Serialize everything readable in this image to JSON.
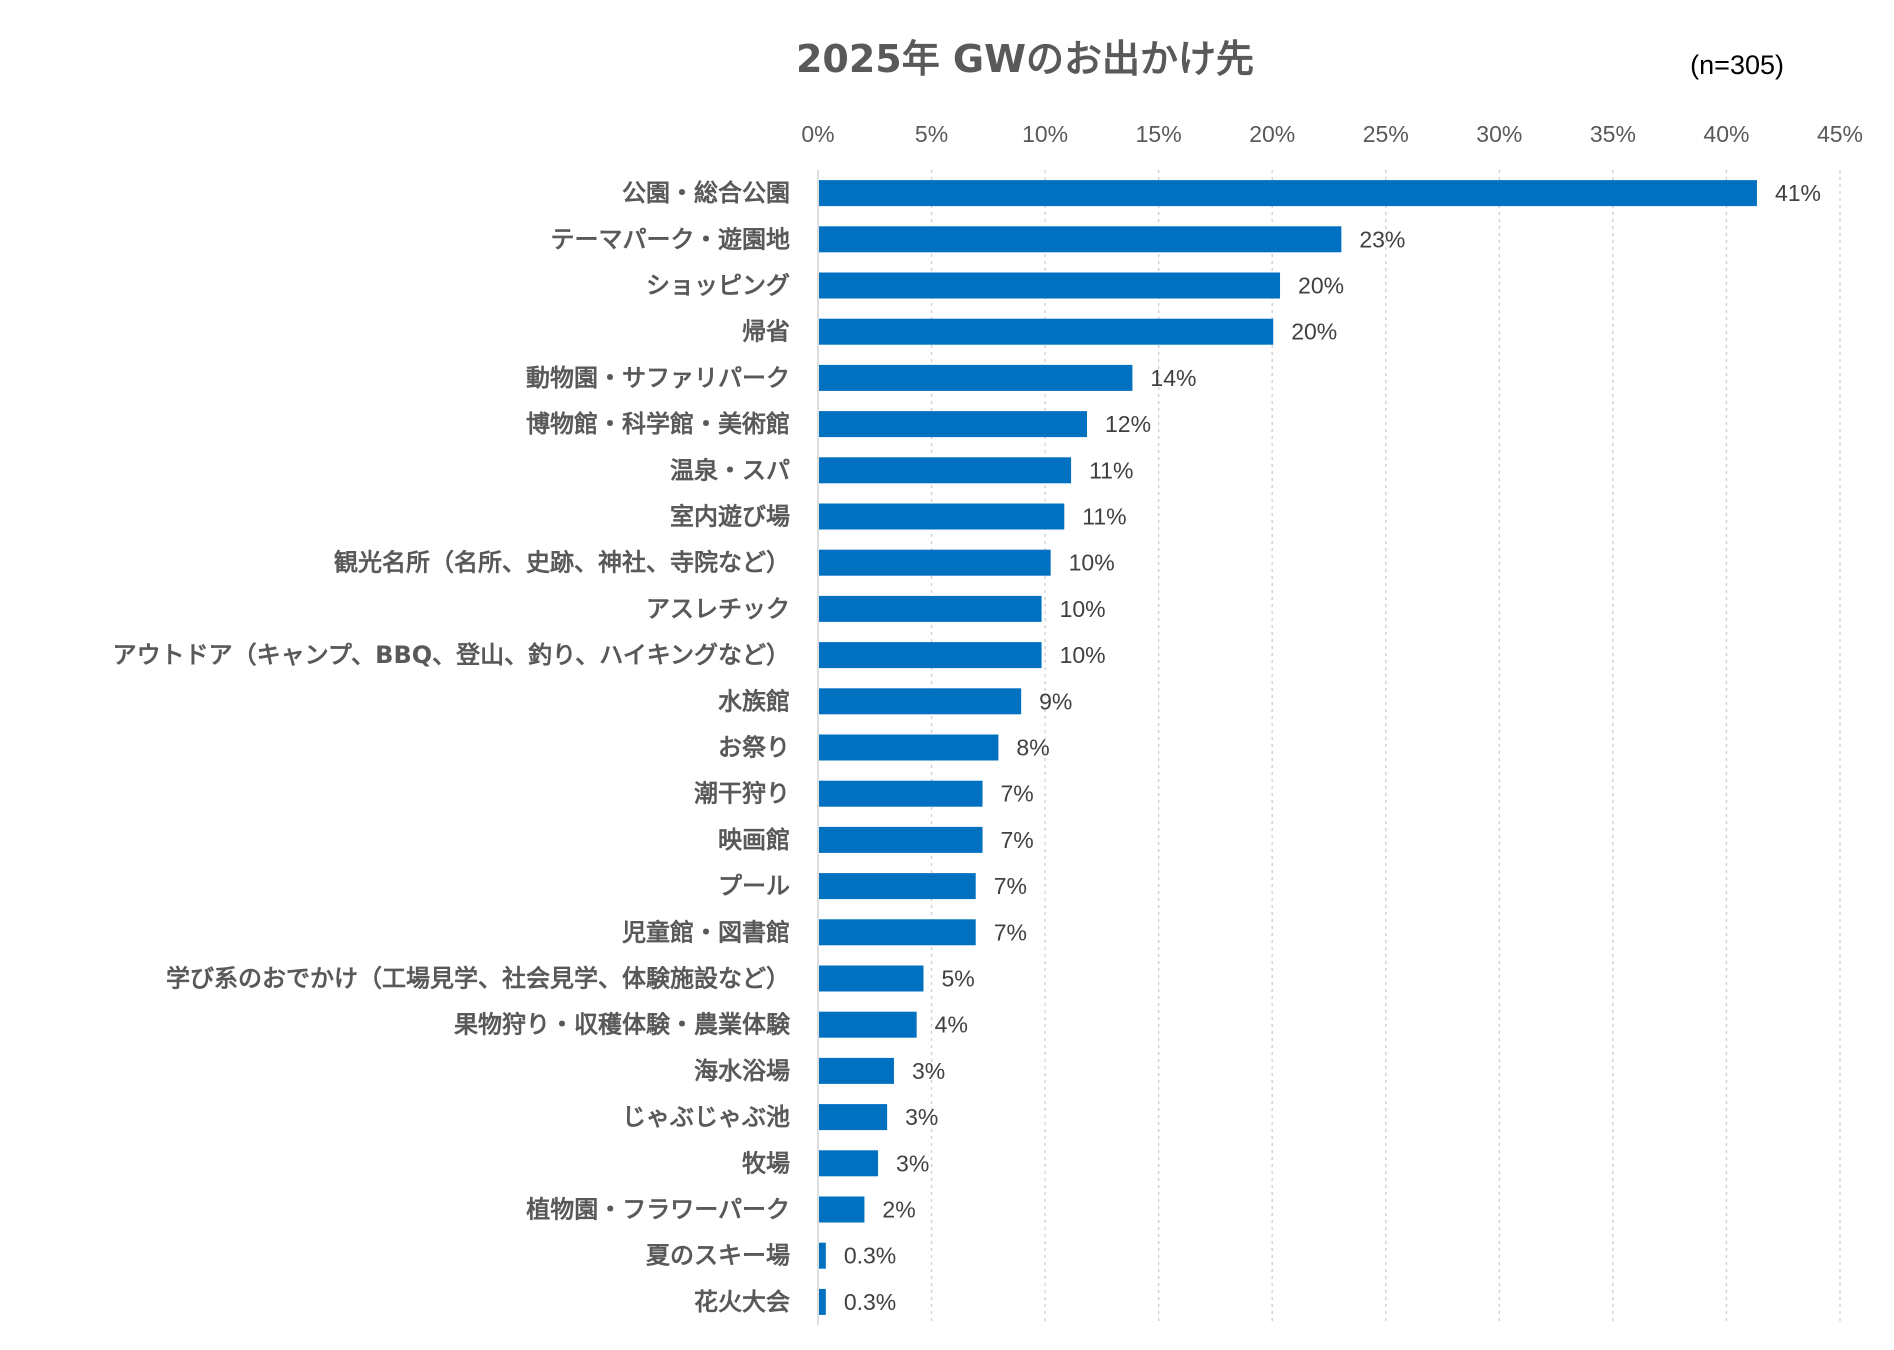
{
  "chart_data": {
    "type": "bar",
    "orientation": "horizontal",
    "title": "2025年 GWのお出かけ先",
    "note": "(n=305)",
    "xlim": [
      0,
      45
    ],
    "xticks": [
      "0%",
      "5%",
      "10%",
      "15%",
      "20%",
      "25%",
      "30%",
      "35%",
      "40%",
      "45%"
    ],
    "grid": true,
    "bar_color": "#0070C0",
    "categories": [
      "公園・総合公園",
      "テーマパーク・遊園地",
      "ショッピング",
      "帰省",
      "動物園・サファリパーク",
      "博物館・科学館・美術館",
      "温泉・スパ",
      "室内遊び場",
      "観光名所（名所、史跡、神社、寺院など）",
      "アスレチック",
      "アウトドア（キャンプ、BBQ、登山、釣り、ハイキングなど）",
      "水族館",
      "お祭り",
      "潮干狩り",
      "映画館",
      "プール",
      "児童館・図書館",
      "学び系のおでかけ（工場見学、社会見学、体験施設など）",
      "果物狩り・収穫体験・農業体験",
      "海水浴場",
      "じゃぶじゃぶ池",
      "牧場",
      "植物園・フラワーパーク",
      "夏のスキー場",
      "花火大会"
    ],
    "values": [
      41.3,
      23.0,
      20.3,
      20.0,
      13.8,
      11.8,
      11.1,
      10.8,
      10.2,
      9.8,
      9.8,
      8.9,
      7.9,
      7.2,
      7.2,
      6.9,
      6.9,
      4.6,
      4.3,
      3.3,
      3.0,
      2.6,
      2.0,
      0.3,
      0.3
    ],
    "data_labels": [
      "41%",
      "23%",
      "20%",
      "20%",
      "14%",
      "12%",
      "11%",
      "11%",
      "10%",
      "10%",
      "10%",
      "9%",
      "8%",
      "7%",
      "7%",
      "7%",
      "7%",
      "5%",
      "4%",
      "3%",
      "3%",
      "3%",
      "2%",
      "0.3%",
      "0.3%"
    ]
  }
}
